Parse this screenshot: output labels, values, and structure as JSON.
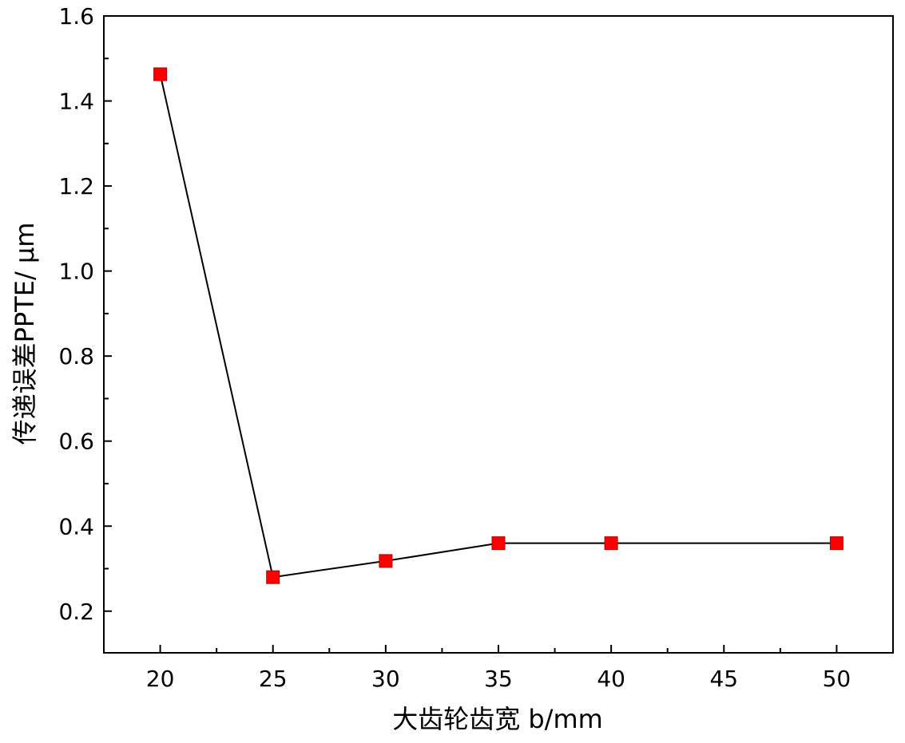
{
  "chart_data": {
    "type": "line",
    "x": [
      20,
      25,
      30,
      35,
      40,
      50
    ],
    "series": [
      {
        "values": [
          1.463,
          0.28,
          0.318,
          0.36,
          0.36,
          0.36
        ]
      }
    ],
    "xlabel": "大齿轮齿宽 b/mm",
    "ylabel": "传递误差PPTE/ μm",
    "xticks": [
      20,
      25,
      30,
      35,
      40,
      45,
      50
    ],
    "xtick_labels": [
      "20",
      "25",
      "30",
      "35",
      "40",
      "45",
      "50"
    ],
    "yticks": [
      0.2,
      0.4,
      0.6,
      0.8,
      1.0,
      1.2,
      1.4,
      1.6
    ],
    "ytick_labels": [
      "0.2",
      "0.4",
      "0.6",
      "0.8",
      "1.0",
      "1.2",
      "1.4",
      "1.6"
    ],
    "xlim": [
      17.5,
      52.5
    ],
    "ylim": [
      0.102,
      1.6
    ],
    "grid": false,
    "marker": "square",
    "marker_color": "#ff0000",
    "line_color": "#000000"
  }
}
